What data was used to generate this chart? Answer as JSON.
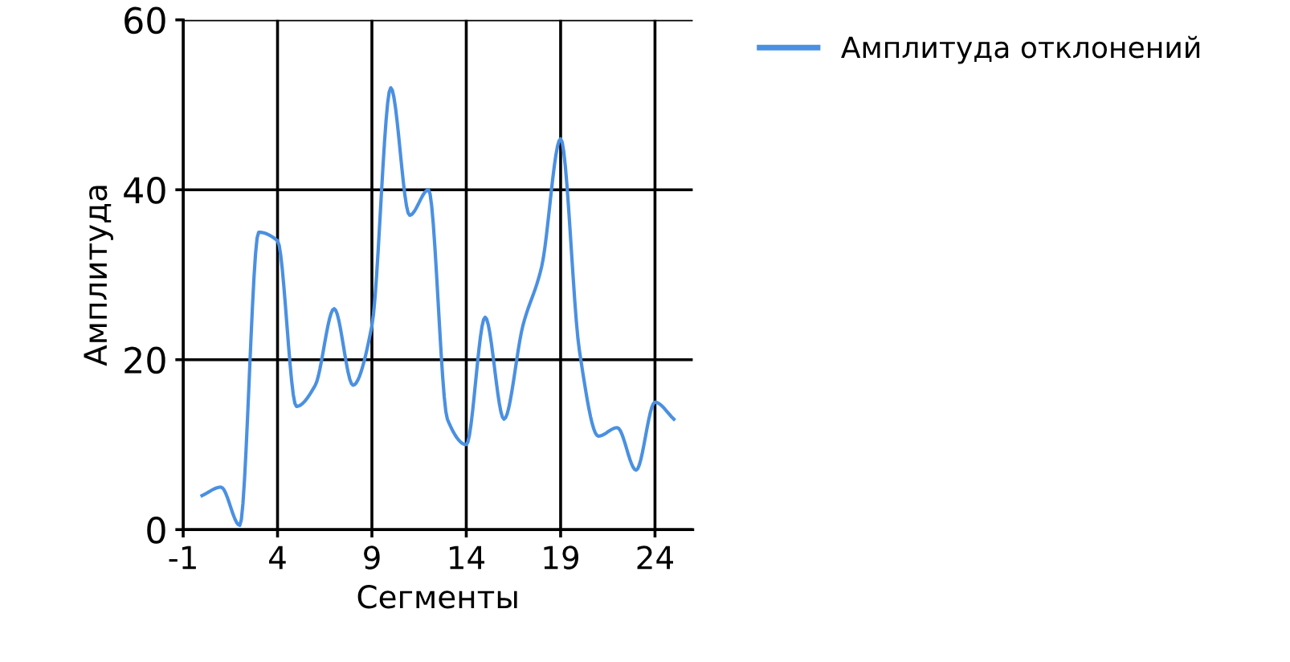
{
  "chart_data": {
    "type": "line",
    "xlabel": "Сегменты",
    "ylabel": "Амплитуда",
    "x": [
      0,
      1,
      2,
      3,
      4,
      5,
      6,
      7,
      8,
      9,
      10,
      11,
      12,
      13,
      14,
      15,
      16,
      17,
      18,
      19,
      20,
      21,
      22,
      23,
      24,
      25
    ],
    "series": [
      {
        "name": "Амплитуда отклонений",
        "color": "#4a90e2",
        "values": [
          4,
          5,
          0.5,
          35,
          34,
          14.5,
          17,
          26,
          17,
          24,
          52,
          37,
          40,
          13,
          10,
          25,
          13,
          24,
          31,
          46,
          21,
          11,
          12,
          7,
          15,
          13
        ]
      }
    ],
    "xlim": [
      -1,
      26
    ],
    "xticks": [
      -1,
      4,
      9,
      14,
      19,
      24
    ],
    "ylim": [
      0,
      60
    ],
    "yticks": [
      0,
      20,
      40,
      60
    ],
    "grid": true,
    "legend": "top right",
    "marker": "none",
    "line_style": "solid"
  }
}
